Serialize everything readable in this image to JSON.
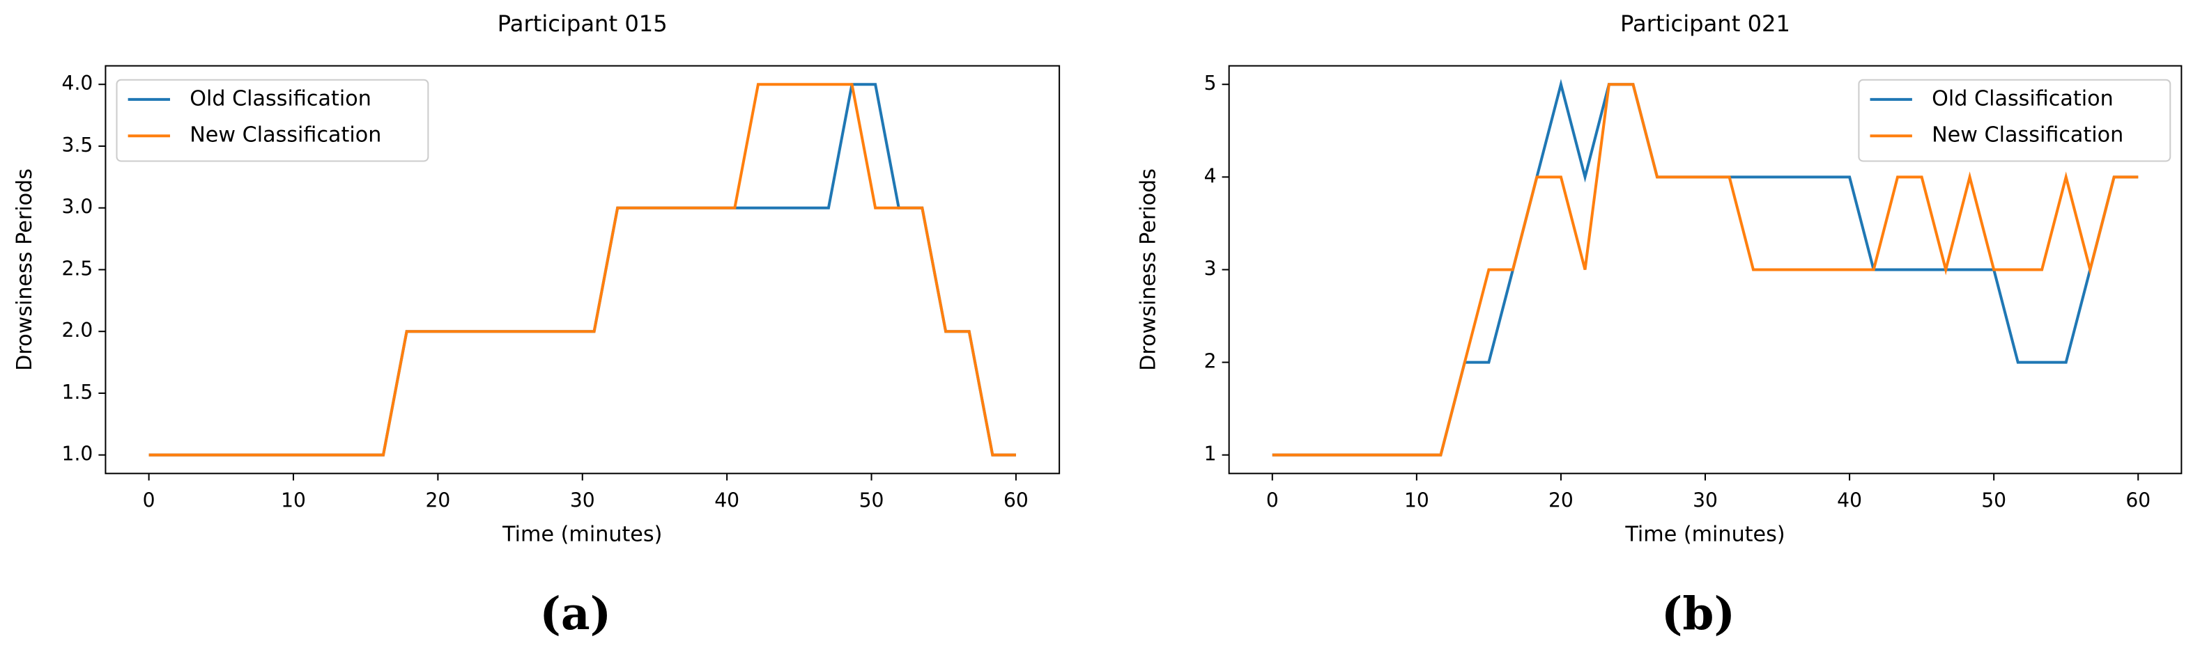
{
  "chart_data": [
    {
      "type": "line",
      "title": "Participant 015",
      "xlabel": "Time (minutes)",
      "ylabel": "Drowsiness Periods",
      "caption": "(a)",
      "x": [
        0,
        1.62,
        3.24,
        4.86,
        6.49,
        8.11,
        9.73,
        11.35,
        12.97,
        14.59,
        16.22,
        17.84,
        19.46,
        21.08,
        22.7,
        24.32,
        25.95,
        27.57,
        29.19,
        30.81,
        32.43,
        34.05,
        35.68,
        37.3,
        38.92,
        40.54,
        42.16,
        43.78,
        45.41,
        47.03,
        48.65,
        50.27,
        51.89,
        53.51,
        55.14,
        56.76,
        58.38,
        60
      ],
      "series": [
        {
          "name": "Old Classification",
          "color": "#1f77b4",
          "values": [
            1,
            1,
            1,
            1,
            1,
            1,
            1,
            1,
            1,
            1,
            1,
            2,
            2,
            2,
            2,
            2,
            2,
            2,
            2,
            2,
            3,
            3,
            3,
            3,
            3,
            3,
            3,
            3,
            3,
            3,
            4,
            4,
            3,
            3,
            2,
            2,
            1,
            1
          ]
        },
        {
          "name": "New Classification",
          "color": "#ff7f0e",
          "values": [
            1,
            1,
            1,
            1,
            1,
            1,
            1,
            1,
            1,
            1,
            1,
            2,
            2,
            2,
            2,
            2,
            2,
            2,
            2,
            2,
            3,
            3,
            3,
            3,
            3,
            3,
            4,
            4,
            4,
            4,
            4,
            3,
            3,
            3,
            2,
            2,
            1,
            1
          ]
        }
      ],
      "xlim": [
        -3,
        63
      ],
      "xticks": [
        0,
        10,
        20,
        30,
        40,
        50,
        60
      ],
      "ylim": [
        0.85,
        4.15
      ],
      "yticks": [
        {
          "value": 1,
          "label": "1.0"
        },
        1.5,
        {
          "value": 2,
          "label": "2.0"
        },
        2.5,
        {
          "value": 3,
          "label": "3.0"
        },
        3.5,
        {
          "value": 4,
          "label": "4.0"
        }
      ],
      "legend": "upper left",
      "grid": false
    },
    {
      "type": "line",
      "title": "Participant 021",
      "xlabel": "Time (minutes)",
      "ylabel": "Drowsiness Periods",
      "caption": "(b)",
      "x": [
        0,
        1.67,
        3.33,
        5,
        6.67,
        8.33,
        10,
        11.67,
        13.33,
        15,
        16.67,
        18.33,
        20,
        21.67,
        23.33,
        25,
        26.67,
        28.33,
        30,
        31.67,
        33.33,
        35,
        36.67,
        38.33,
        40,
        41.67,
        43.33,
        45,
        46.67,
        48.33,
        50,
        51.67,
        53.33,
        55,
        56.67,
        58.33,
        60
      ],
      "series": [
        {
          "name": "Old Classification",
          "color": "#1f77b4",
          "values": [
            1,
            1,
            1,
            1,
            1,
            1,
            1,
            1,
            2,
            2,
            3,
            4,
            5,
            4,
            5,
            5,
            4,
            4,
            4,
            4,
            4,
            4,
            4,
            4,
            4,
            3,
            3,
            3,
            3,
            3,
            3,
            2,
            2,
            2,
            3,
            4,
            4
          ]
        },
        {
          "name": "New Classification",
          "color": "#ff7f0e",
          "values": [
            1,
            1,
            1,
            1,
            1,
            1,
            1,
            1,
            2,
            3,
            3,
            4,
            4,
            3,
            5,
            5,
            4,
            4,
            4,
            4,
            3,
            3,
            3,
            3,
            3,
            3,
            4,
            4,
            3,
            4,
            3,
            3,
            3,
            4,
            3,
            4,
            4
          ]
        }
      ],
      "xlim": [
        -3,
        63
      ],
      "xticks": [
        0,
        10,
        20,
        30,
        40,
        50,
        60
      ],
      "ylim": [
        0.8,
        5.2
      ],
      "yticks": [
        1,
        2,
        3,
        4,
        5
      ],
      "legend": "upper right",
      "grid": false
    }
  ]
}
